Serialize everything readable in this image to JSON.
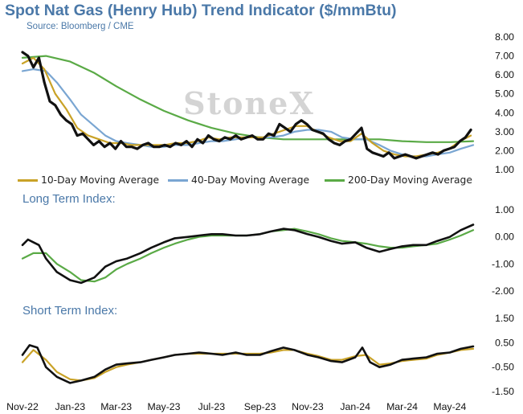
{
  "header": {
    "title": "Spot Nat Gas (Henry Hub) Trend Indicator ($/mmBtu)",
    "source": "Source: Bloomberg / CME",
    "watermark": "StoneX"
  },
  "colors": {
    "price": "#111111",
    "ma10": "#c9a227",
    "ma40": "#7aa6d2",
    "ma200": "#5aaa46",
    "title": "#4a78a8"
  },
  "chart_data": [
    {
      "type": "line",
      "title": "",
      "x_tick_labels": [
        "Nov-22",
        "Jan-23",
        "Mar-23",
        "May-23",
        "Jul-23",
        "Sep-23",
        "Nov-23",
        "Jan-24",
        "Mar-24",
        "May-24"
      ],
      "ylim": [
        1.0,
        8.0
      ],
      "y_ticks": [
        "1.00",
        "2.00",
        "3.00",
        "4.00",
        "5.00",
        "6.00",
        "7.00",
        "8.00"
      ],
      "legend_position": "bottom",
      "series": [
        {
          "name": "",
          "color_key": "price",
          "x": [
            "2022-11-01",
            "2022-11-08",
            "2022-11-15",
            "2022-11-22",
            "2022-11-29",
            "2022-12-06",
            "2022-12-13",
            "2022-12-20",
            "2022-12-27",
            "2023-01-03",
            "2023-01-10",
            "2023-01-17",
            "2023-01-24",
            "2023-01-31",
            "2023-02-07",
            "2023-02-14",
            "2023-02-21",
            "2023-02-28",
            "2023-03-07",
            "2023-03-14",
            "2023-03-21",
            "2023-03-28",
            "2023-04-04",
            "2023-04-11",
            "2023-04-18",
            "2023-04-25",
            "2023-05-02",
            "2023-05-09",
            "2023-05-16",
            "2023-05-23",
            "2023-05-30",
            "2023-06-06",
            "2023-06-13",
            "2023-06-20",
            "2023-06-27",
            "2023-07-04",
            "2023-07-11",
            "2023-07-18",
            "2023-07-25",
            "2023-08-01",
            "2023-08-08",
            "2023-08-15",
            "2023-08-22",
            "2023-08-29",
            "2023-09-05",
            "2023-09-12",
            "2023-09-19",
            "2023-09-26",
            "2023-10-03",
            "2023-10-10",
            "2023-10-17",
            "2023-10-24",
            "2023-10-31",
            "2023-11-07",
            "2023-11-14",
            "2023-11-21",
            "2023-11-28",
            "2023-12-05",
            "2023-12-12",
            "2023-12-19",
            "2023-12-26",
            "2024-01-02",
            "2024-01-09",
            "2024-01-16",
            "2024-01-23",
            "2024-01-30",
            "2024-02-06",
            "2024-02-13",
            "2024-02-20",
            "2024-02-27",
            "2024-03-05",
            "2024-03-12",
            "2024-03-19",
            "2024-03-26",
            "2024-04-02",
            "2024-04-09",
            "2024-04-16",
            "2024-04-23",
            "2024-04-30",
            "2024-05-07",
            "2024-05-14",
            "2024-05-21",
            "2024-05-28"
          ],
          "values": [
            7.2,
            7.0,
            6.4,
            6.9,
            5.6,
            4.6,
            4.4,
            3.9,
            3.6,
            3.4,
            2.8,
            2.9,
            2.6,
            2.3,
            2.5,
            2.2,
            2.4,
            2.1,
            2.5,
            2.2,
            2.2,
            2.1,
            2.3,
            2.4,
            2.2,
            2.2,
            2.3,
            2.2,
            2.4,
            2.3,
            2.5,
            2.2,
            2.6,
            2.4,
            2.8,
            2.6,
            2.5,
            2.7,
            2.6,
            2.8,
            2.6,
            2.7,
            2.8,
            2.6,
            2.6,
            2.9,
            2.8,
            3.4,
            3.2,
            3.0,
            3.4,
            3.6,
            3.4,
            3.1,
            3.0,
            2.9,
            2.6,
            2.4,
            2.3,
            2.5,
            2.6,
            2.9,
            3.2,
            2.1,
            1.9,
            1.8,
            1.7,
            1.9,
            1.6,
            1.7,
            1.8,
            1.7,
            1.6,
            1.7,
            1.8,
            1.9,
            1.8,
            2.0,
            2.1,
            2.2,
            2.5,
            2.7,
            3.1
          ]
        },
        {
          "name": "10-Day Moving Average",
          "color_key": "ma10",
          "x": [
            "2022-11-01",
            "2022-11-15",
            "2022-11-29",
            "2022-12-13",
            "2022-12-27",
            "2023-01-10",
            "2023-01-24",
            "2023-02-07",
            "2023-02-21",
            "2023-03-07",
            "2023-03-21",
            "2023-04-04",
            "2023-04-18",
            "2023-05-02",
            "2023-05-16",
            "2023-05-30",
            "2023-06-13",
            "2023-06-27",
            "2023-07-11",
            "2023-07-25",
            "2023-08-08",
            "2023-08-22",
            "2023-09-05",
            "2023-09-19",
            "2023-10-03",
            "2023-10-17",
            "2023-10-31",
            "2023-11-14",
            "2023-11-28",
            "2023-12-12",
            "2023-12-26",
            "2024-01-09",
            "2024-01-23",
            "2024-02-06",
            "2024-02-20",
            "2024-03-05",
            "2024-03-19",
            "2024-04-02",
            "2024-04-16",
            "2024-04-30",
            "2024-05-14",
            "2024-05-28"
          ],
          "values": [
            6.6,
            6.9,
            6.3,
            5.0,
            4.2,
            3.2,
            2.8,
            2.6,
            2.4,
            2.4,
            2.3,
            2.3,
            2.3,
            2.3,
            2.4,
            2.4,
            2.5,
            2.7,
            2.6,
            2.7,
            2.7,
            2.7,
            2.7,
            2.9,
            3.1,
            3.3,
            3.3,
            3.0,
            2.7,
            2.5,
            2.5,
            2.9,
            2.4,
            2.0,
            1.8,
            1.7,
            1.7,
            1.8,
            1.9,
            2.1,
            2.5,
            2.8
          ]
        },
        {
          "name": "40-Day Moving Average",
          "color_key": "ma40",
          "x": [
            "2022-11-01",
            "2022-11-15",
            "2022-12-01",
            "2022-12-15",
            "2023-01-01",
            "2023-01-15",
            "2023-02-01",
            "2023-02-15",
            "2023-03-01",
            "2023-03-15",
            "2023-04-01",
            "2023-04-15",
            "2023-05-01",
            "2023-05-15",
            "2023-06-01",
            "2023-06-15",
            "2023-07-01",
            "2023-07-15",
            "2023-08-01",
            "2023-08-15",
            "2023-09-01",
            "2023-09-15",
            "2023-10-01",
            "2023-10-15",
            "2023-11-01",
            "2023-11-15",
            "2023-12-01",
            "2023-12-15",
            "2024-01-01",
            "2024-01-15",
            "2024-02-01",
            "2024-02-15",
            "2024-03-01",
            "2024-03-15",
            "2024-04-01",
            "2024-04-15",
            "2024-05-01",
            "2024-05-15",
            "2024-05-31"
          ],
          "values": [
            6.2,
            6.3,
            6.2,
            5.6,
            4.7,
            3.9,
            3.3,
            2.8,
            2.5,
            2.4,
            2.3,
            2.2,
            2.2,
            2.3,
            2.3,
            2.4,
            2.5,
            2.5,
            2.6,
            2.7,
            2.7,
            2.7,
            2.8,
            3.0,
            3.1,
            3.1,
            3.0,
            2.7,
            2.6,
            2.6,
            2.3,
            2.0,
            1.8,
            1.7,
            1.7,
            1.8,
            1.9,
            2.1,
            2.3
          ]
        },
        {
          "name": "200-Day Moving Average",
          "color_key": "ma200",
          "x": [
            "2022-11-01",
            "2022-12-01",
            "2023-01-01",
            "2023-02-01",
            "2023-03-01",
            "2023-04-01",
            "2023-05-01",
            "2023-06-01",
            "2023-07-01",
            "2023-08-01",
            "2023-09-01",
            "2023-10-01",
            "2023-11-01",
            "2023-12-01",
            "2024-01-01",
            "2024-02-01",
            "2024-03-01",
            "2024-04-01",
            "2024-05-01",
            "2024-05-31"
          ],
          "values": [
            6.9,
            7.0,
            6.7,
            6.1,
            5.4,
            4.7,
            4.1,
            3.6,
            3.2,
            2.9,
            2.7,
            2.6,
            2.6,
            2.6,
            2.6,
            2.6,
            2.5,
            2.45,
            2.45,
            2.5
          ]
        }
      ]
    },
    {
      "type": "line",
      "title": "Long Term Index:",
      "ylim": [
        -2.0,
        1.0
      ],
      "y_ticks": [
        "-2.00",
        "-1.00",
        "0.00",
        "1.00"
      ],
      "series": [
        {
          "name": "",
          "color_key": "price",
          "x": [
            "2022-11-01",
            "2022-11-08",
            "2022-11-15",
            "2022-11-22",
            "2022-12-01",
            "2022-12-15",
            "2023-01-01",
            "2023-01-15",
            "2023-02-01",
            "2023-02-15",
            "2023-03-01",
            "2023-03-15",
            "2023-04-01",
            "2023-04-15",
            "2023-05-01",
            "2023-05-15",
            "2023-06-01",
            "2023-06-15",
            "2023-07-01",
            "2023-07-15",
            "2023-08-01",
            "2023-08-15",
            "2023-09-01",
            "2023-09-15",
            "2023-10-01",
            "2023-10-15",
            "2023-11-01",
            "2023-11-15",
            "2023-12-01",
            "2023-12-15",
            "2024-01-01",
            "2024-01-15",
            "2024-02-01",
            "2024-02-15",
            "2024-03-01",
            "2024-03-15",
            "2024-04-01",
            "2024-04-15",
            "2024-05-01",
            "2024-05-15",
            "2024-05-31"
          ],
          "values": [
            -0.3,
            -0.1,
            -0.2,
            -0.3,
            -0.8,
            -1.3,
            -1.6,
            -1.7,
            -1.5,
            -1.1,
            -0.9,
            -0.8,
            -0.6,
            -0.4,
            -0.2,
            -0.05,
            0.0,
            0.05,
            0.1,
            0.1,
            0.05,
            0.05,
            0.1,
            0.2,
            0.3,
            0.25,
            0.1,
            0.0,
            -0.15,
            -0.25,
            -0.2,
            -0.4,
            -0.55,
            -0.45,
            -0.35,
            -0.3,
            -0.3,
            -0.15,
            0.0,
            0.25,
            0.45
          ]
        },
        {
          "name": "",
          "color_key": "ma200",
          "x": [
            "2022-11-01",
            "2022-11-15",
            "2022-12-01",
            "2022-12-15",
            "2023-01-01",
            "2023-01-15",
            "2023-02-01",
            "2023-02-15",
            "2023-03-01",
            "2023-03-15",
            "2023-04-01",
            "2023-04-15",
            "2023-05-01",
            "2023-05-15",
            "2023-06-01",
            "2023-06-15",
            "2023-07-01",
            "2023-07-15",
            "2023-08-01",
            "2023-08-15",
            "2023-09-01",
            "2023-09-15",
            "2023-10-01",
            "2023-10-15",
            "2023-11-01",
            "2023-11-15",
            "2023-12-01",
            "2023-12-15",
            "2024-01-01",
            "2024-01-15",
            "2024-02-01",
            "2024-02-15",
            "2024-03-01",
            "2024-03-15",
            "2024-04-01",
            "2024-04-15",
            "2024-05-01",
            "2024-05-15",
            "2024-05-31"
          ],
          "values": [
            -0.8,
            -0.6,
            -0.6,
            -1.0,
            -1.3,
            -1.6,
            -1.65,
            -1.5,
            -1.2,
            -1.0,
            -0.8,
            -0.6,
            -0.4,
            -0.25,
            -0.1,
            0.0,
            0.05,
            0.05,
            0.05,
            0.05,
            0.1,
            0.2,
            0.25,
            0.3,
            0.2,
            0.1,
            -0.05,
            -0.15,
            -0.2,
            -0.25,
            -0.35,
            -0.4,
            -0.4,
            -0.35,
            -0.3,
            -0.25,
            -0.1,
            0.05,
            0.25
          ]
        }
      ]
    },
    {
      "type": "line",
      "title": "Short Term Index:",
      "ylim": [
        -1.5,
        1.5
      ],
      "y_ticks": [
        "-1.50",
        "-0.50",
        "0.50",
        "1.50"
      ],
      "series": [
        {
          "name": "",
          "color_key": "price",
          "x": [
            "2022-11-01",
            "2022-11-10",
            "2022-11-20",
            "2022-12-01",
            "2022-12-15",
            "2023-01-01",
            "2023-01-15",
            "2023-02-01",
            "2023-02-15",
            "2023-03-01",
            "2023-03-15",
            "2023-04-01",
            "2023-04-15",
            "2023-05-01",
            "2023-05-15",
            "2023-06-01",
            "2023-06-15",
            "2023-07-01",
            "2023-07-15",
            "2023-08-01",
            "2023-08-15",
            "2023-09-01",
            "2023-09-15",
            "2023-10-01",
            "2023-10-15",
            "2023-11-01",
            "2023-11-15",
            "2023-12-01",
            "2023-12-15",
            "2024-01-01",
            "2024-01-10",
            "2024-01-20",
            "2024-02-01",
            "2024-02-15",
            "2024-03-01",
            "2024-03-15",
            "2024-04-01",
            "2024-04-15",
            "2024-05-01",
            "2024-05-15",
            "2024-05-31"
          ],
          "values": [
            0.0,
            0.4,
            0.3,
            -0.5,
            -0.9,
            -1.15,
            -1.05,
            -0.9,
            -0.6,
            -0.4,
            -0.35,
            -0.3,
            -0.2,
            -0.1,
            0.0,
            0.05,
            0.1,
            0.05,
            0.0,
            0.1,
            0.0,
            0.0,
            0.15,
            0.3,
            0.2,
            0.0,
            -0.1,
            -0.25,
            -0.3,
            -0.1,
            0.3,
            -0.3,
            -0.5,
            -0.4,
            -0.2,
            -0.15,
            -0.1,
            0.05,
            0.1,
            0.25,
            0.35
          ]
        },
        {
          "name": "",
          "color_key": "ma10",
          "x": [
            "2022-11-01",
            "2022-11-15",
            "2022-12-01",
            "2022-12-15",
            "2023-01-01",
            "2023-01-15",
            "2023-02-01",
            "2023-02-15",
            "2023-03-01",
            "2023-03-15",
            "2023-04-01",
            "2023-04-15",
            "2023-05-01",
            "2023-05-15",
            "2023-06-01",
            "2023-06-15",
            "2023-07-01",
            "2023-07-15",
            "2023-08-01",
            "2023-08-15",
            "2023-09-01",
            "2023-09-15",
            "2023-10-01",
            "2023-10-15",
            "2023-11-01",
            "2023-11-15",
            "2023-12-01",
            "2023-12-15",
            "2024-01-01",
            "2024-01-15",
            "2024-02-01",
            "2024-02-15",
            "2024-03-01",
            "2024-03-15",
            "2024-04-01",
            "2024-04-15",
            "2024-05-01",
            "2024-05-15",
            "2024-05-31"
          ],
          "values": [
            -0.3,
            0.2,
            -0.2,
            -0.7,
            -1.0,
            -1.05,
            -0.95,
            -0.7,
            -0.5,
            -0.4,
            -0.3,
            -0.2,
            -0.1,
            0.0,
            0.05,
            0.05,
            0.05,
            0.05,
            0.05,
            0.05,
            0.05,
            0.1,
            0.2,
            0.2,
            0.05,
            -0.05,
            -0.2,
            -0.2,
            -0.05,
            0.0,
            -0.4,
            -0.35,
            -0.25,
            -0.2,
            -0.15,
            0.0,
            0.1,
            0.2,
            0.25
          ]
        }
      ]
    }
  ],
  "legend": [
    {
      "label": "10-Day Moving Average",
      "color_key": "ma10"
    },
    {
      "label": "40-Day Moving Average",
      "color_key": "ma40"
    },
    {
      "label": "200-Day Moving Average",
      "color_key": "ma200"
    }
  ]
}
